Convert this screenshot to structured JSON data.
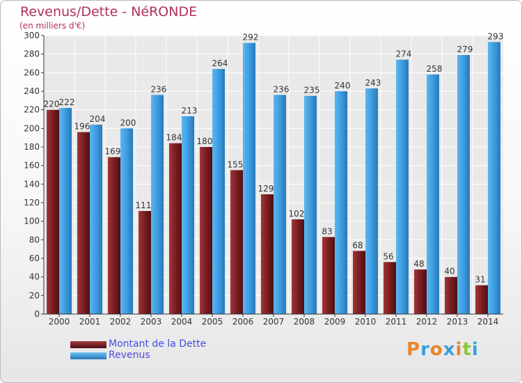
{
  "header": {
    "title": "Revenus/Dette - NéRONDE",
    "subtitle": "(en milliers d'€)"
  },
  "colors": {
    "title": "#b03060",
    "dette": "#7a1e22",
    "revenus": "#3d9de0",
    "legend_text": "#4a4ae0",
    "logo_letters": [
      "#e8862a",
      "#3aa0d8",
      "#e8862a",
      "#3aa0d8",
      "#e8862a",
      "#8cc63f",
      "#3aa0d8"
    ]
  },
  "chart_data": {
    "type": "bar",
    "title": "Revenus/Dette - NéRONDE",
    "subtitle": "(en milliers d'€)",
    "xlabel": "",
    "ylabel": "",
    "ylim": [
      0,
      300
    ],
    "yticks": [
      0,
      20,
      40,
      60,
      80,
      100,
      120,
      140,
      160,
      180,
      200,
      220,
      240,
      260,
      280,
      300
    ],
    "grid": true,
    "categories": [
      "2000",
      "2001",
      "2002",
      "2003",
      "2004",
      "2005",
      "2006",
      "2007",
      "2008",
      "2009",
      "2010",
      "2011",
      "2012",
      "2013",
      "2014"
    ],
    "series": [
      {
        "name": "Montant de la Dette",
        "values": [
          220,
          196,
          169,
          111,
          184,
          180,
          155,
          129,
          102,
          83,
          68,
          56,
          48,
          40,
          31
        ]
      },
      {
        "name": "Revenus",
        "values": [
          222,
          204,
          200,
          236,
          213,
          264,
          292,
          236,
          235,
          240,
          243,
          274,
          258,
          279,
          293
        ]
      }
    ],
    "legend_position": "bottom-left"
  },
  "legend": {
    "items": [
      {
        "label": "Montant de la Dette"
      },
      {
        "label": "Revenus"
      }
    ]
  },
  "logo": {
    "letters": [
      "P",
      "r",
      "o",
      "x",
      "i",
      "t",
      "i"
    ]
  }
}
